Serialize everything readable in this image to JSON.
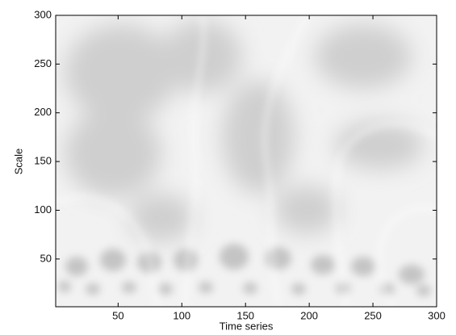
{
  "chart_data": {
    "type": "heatmap",
    "xlabel": "Time series",
    "ylabel": "Scale",
    "xlim": [
      1,
      300
    ],
    "ylim": [
      1,
      300
    ],
    "xticks": [
      50,
      100,
      150,
      200,
      250,
      300
    ],
    "yticks": [
      50,
      100,
      150,
      200,
      250,
      300
    ]
  }
}
